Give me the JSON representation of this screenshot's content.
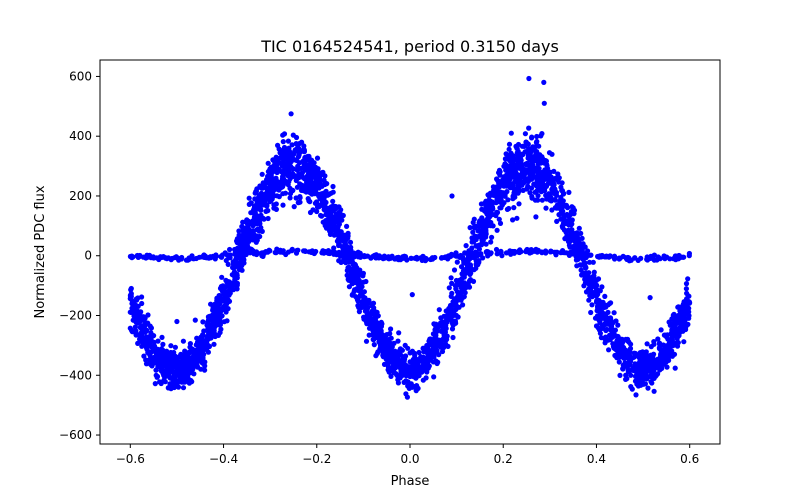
{
  "chart_data": {
    "type": "scatter",
    "title": "TIC 0164524541, period 0.3150 days",
    "xlabel": "Phase",
    "ylabel": "Normalized PDC flux",
    "xlim": [
      -0.665,
      0.665
    ],
    "ylim": [
      -630,
      655
    ],
    "x_ticks": [
      -0.6,
      -0.4,
      -0.2,
      0.0,
      0.2,
      0.4,
      0.6
    ],
    "x_tick_labels": [
      "−0.6",
      "−0.4",
      "−0.2",
      "0.0",
      "0.2",
      "0.4",
      "0.6"
    ],
    "y_ticks": [
      -600,
      -400,
      -200,
      0,
      200,
      400,
      600
    ],
    "y_tick_labels": [
      "−600",
      "−400",
      "−200",
      "0",
      "200",
      "400",
      "600"
    ],
    "grid": false,
    "marker_color": "#0000ff",
    "phase_range": [
      -0.6,
      0.6
    ],
    "series": [
      {
        "description": "main light curve band (sinusoid, two cycles per unit phase)",
        "amplitude": 340,
        "offset": -40,
        "band_halfwidth_at_peak": 90,
        "band_halfwidth_at_trough": 60,
        "x": [
          -0.6,
          -0.55,
          -0.5,
          -0.45,
          -0.4,
          -0.35,
          -0.3,
          -0.25,
          -0.2,
          -0.15,
          -0.1,
          -0.05,
          0.0,
          0.05,
          0.1,
          0.15,
          0.2,
          0.25,
          0.3,
          0.35,
          0.4,
          0.45,
          0.5,
          0.55,
          0.6
        ],
        "y": [
          -100,
          -270,
          -410,
          -330,
          -60,
          150,
          290,
          310,
          230,
          50,
          -120,
          -320,
          -420,
          -330,
          -90,
          140,
          300,
          330,
          220,
          40,
          -130,
          -340,
          -420,
          -300,
          -80
        ]
      },
      {
        "description": "flat secondary track",
        "x": [
          -0.6,
          -0.5,
          -0.4,
          -0.3,
          -0.2,
          -0.1,
          0.0,
          0.1,
          0.2,
          0.3,
          0.4,
          0.5,
          0.6
        ],
        "y": [
          5,
          15,
          0,
          -10,
          -12,
          5,
          18,
          0,
          -12,
          -8,
          2,
          14,
          8
        ]
      }
    ],
    "outliers": {
      "x": [
        0.255,
        0.287,
        0.288,
        -0.255,
        0.09,
        0.005,
        0.22,
        -0.5,
        -0.42,
        0.515,
        0.4,
        -0.12,
        0.35,
        0.27,
        -0.35
      ],
      "y": [
        593,
        580,
        510,
        475,
        200,
        -130,
        120,
        -220,
        -250,
        -140,
        -235,
        -120,
        160,
        130,
        120
      ]
    }
  }
}
